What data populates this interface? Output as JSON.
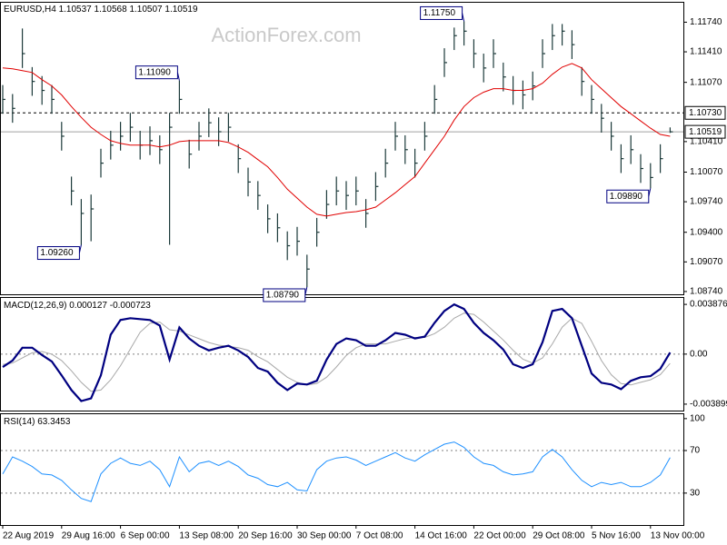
{
  "chart_data": [
    {
      "type": "ohlc",
      "title": "EURUSD,H4",
      "last_open": 1.10537,
      "watermark": "ActionForex.com",
      "color": "#1c3a3a",
      "high": [
        1.1104,
        1.1094,
        1.1167,
        1.1124,
        1.1114,
        1.1104,
        1.1063,
        1.1002,
        1.0977,
        1.0982,
        1.1033,
        1.1053,
        1.1063,
        1.1073,
        1.1053,
        1.1058,
        1.1048,
        1.1073,
        1.1109,
        1.1043,
        1.1063,
        1.1078,
        1.1068,
        1.1073,
        1.1038,
        1.1012,
        1.0997,
        1.0971,
        1.0961,
        1.0941,
        1.0946,
        1.0915,
        1.0956,
        1.0987,
        1.1002,
        1.0997,
        1.1002,
        1.0977,
        1.1007,
        1.1033,
        1.1063,
        1.1048,
        1.1033,
        1.1063,
        1.1104,
        1.1145,
        1.1168,
        1.1175,
        1.1155,
        1.1139,
        1.1155,
        1.1129,
        1.1114,
        1.1109,
        1.1119,
        1.1155,
        1.1172,
        1.1172,
        1.1165,
        1.1124,
        1.1104,
        1.1083,
        1.1063,
        1.1038,
        1.1048,
        1.1027,
        1.1017,
        1.1038,
        1.10568
      ],
      "low": [
        1.1072,
        1.1062,
        1.1123,
        1.1092,
        1.1082,
        1.1072,
        1.1031,
        1.097,
        1.0926,
        1.093,
        1.1001,
        1.1021,
        1.1031,
        1.1041,
        1.1021,
        1.1026,
        1.1016,
        1.0926,
        1.1072,
        1.1011,
        1.1031,
        1.1046,
        1.1036,
        1.1041,
        1.1006,
        1.098,
        1.0965,
        1.0939,
        1.0929,
        1.0909,
        1.0914,
        1.0879,
        1.0924,
        1.0955,
        1.097,
        1.0965,
        1.097,
        1.0945,
        1.0975,
        1.1001,
        1.1031,
        1.1016,
        1.1001,
        1.1031,
        1.1072,
        1.1113,
        1.1143,
        1.1148,
        1.1123,
        1.1107,
        1.1123,
        1.1097,
        1.1082,
        1.1077,
        1.1087,
        1.1123,
        1.1143,
        1.1148,
        1.1133,
        1.1092,
        1.1072,
        1.1051,
        1.1031,
        1.1006,
        1.1016,
        1.0995,
        1.0989,
        1.1006,
        1.10507
      ],
      "close": [
        1.1088,
        1.1078,
        1.1139,
        1.1108,
        1.1098,
        1.1088,
        1.1047,
        1.0986,
        1.0961,
        1.0966,
        1.1017,
        1.1037,
        1.1047,
        1.1057,
        1.1037,
        1.1042,
        1.1032,
        1.1057,
        1.1088,
        1.1027,
        1.1047,
        1.1062,
        1.1052,
        1.1057,
        1.1022,
        1.0996,
        1.0981,
        1.0955,
        1.0945,
        1.0925,
        1.093,
        1.0899,
        1.094,
        1.0971,
        1.0986,
        1.0981,
        1.0986,
        1.0961,
        1.0991,
        1.1017,
        1.1047,
        1.1032,
        1.1017,
        1.1047,
        1.1088,
        1.1129,
        1.1159,
        1.1164,
        1.1139,
        1.1123,
        1.1139,
        1.1113,
        1.1098,
        1.1093,
        1.1103,
        1.1139,
        1.1159,
        1.1164,
        1.1149,
        1.1108,
        1.1088,
        1.1067,
        1.1047,
        1.1022,
        1.1032,
        1.1011,
        1.1001,
        1.1022,
        1.10519
      ],
      "ma": {
        "color": "#e00000",
        "values": [
          1.1123,
          1.1122,
          1.112,
          1.1118,
          1.111,
          1.1103,
          1.1093,
          1.108,
          1.1068,
          1.1057,
          1.1049,
          1.1042,
          1.1039,
          1.1037,
          1.1037,
          1.1037,
          1.1035,
          1.1037,
          1.1041,
          1.1042,
          1.1042,
          1.1042,
          1.1042,
          1.104,
          1.1035,
          1.1029,
          1.1021,
          1.1013,
          1.1001,
          1.0988,
          1.0978,
          1.0968,
          1.096,
          1.0958,
          1.096,
          1.0962,
          1.0963,
          1.0965,
          1.0968,
          1.0976,
          1.0984,
          1.0993,
          1.1002,
          1.1017,
          1.1032,
          1.1047,
          1.1065,
          1.108,
          1.109,
          1.1096,
          1.11,
          1.11,
          1.1098,
          1.1098,
          1.11,
          1.1106,
          1.1116,
          1.1124,
          1.1128,
          1.1123,
          1.111,
          1.11,
          1.109,
          1.108,
          1.1072,
          1.1064,
          1.1056,
          1.1049,
          1.1047
        ]
      },
      "level": {
        "value": 1.1073,
        "label": "1.10730"
      },
      "annotations": [
        {
          "index": 8,
          "value": 1.0926,
          "label": "1.09260"
        },
        {
          "index": 18,
          "value": 1.1109,
          "label": "1.11090"
        },
        {
          "index": 31,
          "value": 1.0879,
          "label": "1.08790"
        },
        {
          "index": 47,
          "value": 1.1175,
          "label": "1.11750"
        },
        {
          "index": 66,
          "value": 1.0989,
          "label": "1.09890"
        }
      ],
      "ylim": [
        1.08709,
        1.11967
      ],
      "yticks": [
        {
          "value": 1.1174,
          "label": "1.11740"
        },
        {
          "value": 1.1141,
          "label": "1.11410"
        },
        {
          "value": 1.1107,
          "label": "1.11070"
        },
        {
          "value": 1.1041,
          "label": "1.10410"
        },
        {
          "value": 1.1007,
          "label": "1.10070"
        },
        {
          "value": 1.0974,
          "label": "1.09740"
        },
        {
          "value": 1.094,
          "label": "1.09400"
        },
        {
          "value": 1.0907,
          "label": "1.09070"
        },
        {
          "value": 1.0874,
          "label": "1.08740"
        }
      ]
    },
    {
      "type": "macd",
      "title": "MACD(12,26,9)",
      "series": [
        {
          "color": "#000080",
          "values": [
            -0.00101,
            -0.0005,
            0.0005,
            0.0005,
            -7e-05,
            -0.00057,
            -0.00165,
            -0.0028,
            -0.00366,
            -0.00345,
            -0.00165,
            0.00151,
            0.00266,
            0.0028,
            0.00273,
            0.00266,
            0.00223,
            -0.00043,
            0.00208,
            0.00122,
            0.00065,
            0.00029,
            0.0005,
            0.00065,
            0.00029,
            -0.00022,
            -0.00108,
            -0.00136,
            -0.00223,
            -0.0028,
            -0.0023,
            -0.00237,
            -0.00208,
            -0.00043,
            0.00079,
            0.00122,
            0.00108,
            0.00065,
            0.00065,
            0.00108,
            0.00165,
            0.00151,
            0.00122,
            0.00136,
            0.00244,
            0.00337,
            0.00388,
            0.00352,
            0.00244,
            0.00165,
            0.00108,
            0.00036,
            -0.00079,
            -0.00108,
            -0.00079,
            0.00093,
            0.00337,
            0.00352,
            0.0028,
            0.00065,
            -0.00151,
            -0.00223,
            -0.00237,
            -0.00273,
            -0.00208,
            -0.0018,
            -0.00172,
            -0.00115,
            0.000127
          ]
        },
        {
          "color": "#a8a8a8",
          "values": [
            -0.0008,
            -0.0007,
            -0.0003,
            0.0001,
            0.0002,
            0,
            -0.0005,
            -0.0013,
            -0.0022,
            -0.0029,
            -0.0028,
            -0.002,
            -0.0009,
            0.0004,
            0.0017,
            0.0024,
            0.0025,
            0.0019,
            0.0018,
            0.0015,
            0.0012,
            0.0009,
            0.0007,
            0.0006,
            0.0005,
            0.0003,
            -0.0002,
            -0.0006,
            -0.0012,
            -0.0018,
            -0.0022,
            -0.0024,
            -0.0023,
            -0.0018,
            -0.001,
            -0.0001,
            0.0005,
            0.0008,
            0.0008,
            0.0008,
            0.001,
            0.0012,
            0.0013,
            0.0013,
            0.0016,
            0.0021,
            0.0028,
            0.0032,
            0.0031,
            0.0025,
            0.0018,
            0.0011,
            0.0003,
            -0.0004,
            -0.0007,
            -0.0003,
            0.0008,
            0.0021,
            0.0028,
            0.0024,
            0.001,
            -0.0005,
            -0.0016,
            -0.0023,
            -0.0024,
            -0.0022,
            -0.002,
            -0.0016,
            -0.000723
          ]
        }
      ],
      "levels": [
        0
      ],
      "ylim": [
        -0.0044,
        0.00445
      ],
      "yticks": [
        {
          "value": 0.003876,
          "label": "0.003876"
        },
        {
          "value": 0,
          "label": "0.00"
        },
        {
          "value": -0.003899,
          "label": "-0.003899"
        }
      ]
    },
    {
      "type": "line",
      "title": "RSI(14)",
      "color": "#1e90ff",
      "values": [
        48,
        64,
        60,
        55,
        48,
        47,
        42,
        33,
        25,
        22,
        48,
        58,
        63,
        58,
        56,
        60,
        52,
        36,
        64,
        50,
        58,
        60,
        56,
        60,
        55,
        47,
        44,
        38,
        36,
        40,
        33,
        32,
        52,
        60,
        63,
        64,
        61,
        56,
        60,
        64,
        68,
        63,
        60,
        66,
        71,
        76,
        78,
        73,
        64,
        58,
        56,
        50,
        47,
        48,
        50,
        64,
        71,
        64,
        52,
        42,
        36,
        40,
        38,
        40,
        36,
        36,
        40,
        47,
        63.3453
      ],
      "levels": [
        30,
        70
      ],
      "ylim": [
        0,
        105
      ],
      "yticks": [
        30,
        70,
        100
      ],
      "categories": [
        "22 Aug 2019",
        null,
        null,
        null,
        null,
        null,
        "29 Aug 16:00",
        null,
        null,
        null,
        null,
        null,
        "6 Sep 00:00",
        null,
        null,
        null,
        null,
        null,
        "13 Sep 08:00",
        null,
        null,
        null,
        null,
        null,
        "20 Sep 16:00",
        null,
        null,
        null,
        null,
        null,
        "30 Sep 00:00",
        null,
        null,
        null,
        null,
        null,
        "7 Oct 08:00",
        null,
        null,
        null,
        null,
        null,
        "14 Oct 16:00",
        null,
        null,
        null,
        null,
        null,
        "22 Oct 00:00",
        null,
        null,
        null,
        null,
        null,
        "29 Oct 08:00",
        null,
        null,
        null,
        null,
        null,
        "5 Nov 16:00",
        null,
        null,
        null,
        null,
        null,
        "13 Nov 00:00",
        null,
        null
      ]
    }
  ]
}
